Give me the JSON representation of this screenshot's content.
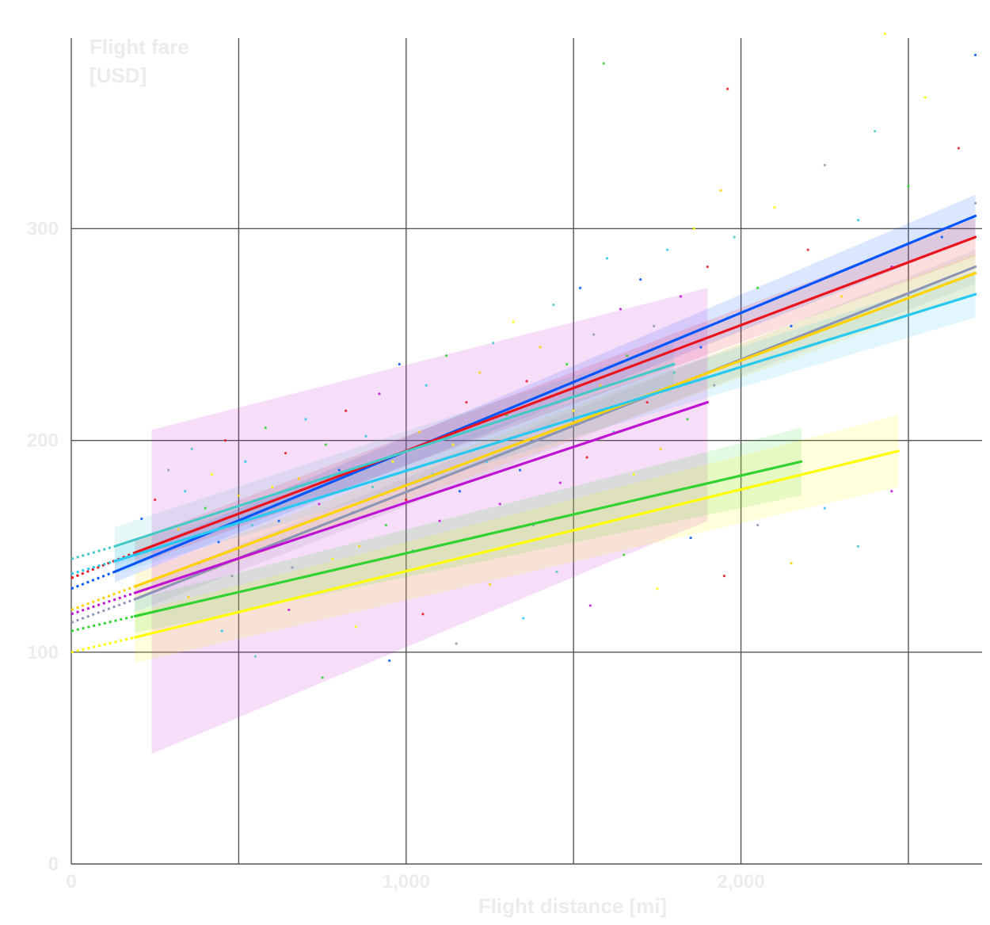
{
  "chart_data": {
    "type": "scatter",
    "title": "",
    "xlabel": "Flight distance [mi]",
    "ylabel_lines": [
      "Flight fare",
      "[USD]"
    ],
    "xlim": [
      0,
      2720
    ],
    "ylim": [
      0,
      390
    ],
    "x_ticks": [
      0,
      500,
      1000,
      1500,
      2000,
      2500
    ],
    "x_tick_labels": [
      "0",
      "",
      "1,000",
      "",
      "2,000",
      ""
    ],
    "y_ticks": [
      0,
      100,
      200,
      300
    ],
    "y_tick_labels": [
      "0",
      "100",
      "200",
      "300"
    ],
    "grid": true,
    "legend": "none",
    "trend_lines": [
      {
        "color": "#0055ff",
        "x": [
          130,
          2700
        ],
        "y": [
          138,
          306
        ],
        "band": [
          [
            130,
            133,
            143
          ],
          [
            2700,
            296,
            316
          ]
        ],
        "extrapolated_to_zero_y": 130
      },
      {
        "color": "#e8141e",
        "x": [
          190,
          2700
        ],
        "y": [
          147,
          296
        ],
        "band": [
          [
            190,
            141,
            153
          ],
          [
            2700,
            287,
            305
          ]
        ],
        "extrapolated_to_zero_y": 135
      },
      {
        "color": "#8c96b4",
        "x": [
          190,
          2700
        ],
        "y": [
          125,
          282
        ],
        "band": [
          [
            190,
            119,
            131
          ],
          [
            2700,
            274,
            290
          ]
        ],
        "extrapolated_to_zero_y": 114
      },
      {
        "color": "#ffd200",
        "x": [
          190,
          2700
        ],
        "y": [
          131,
          279
        ],
        "band": [
          [
            190,
            125,
            137
          ],
          [
            2700,
            270,
            288
          ]
        ],
        "extrapolated_to_zero_y": 120
      },
      {
        "color": "#28c8f0",
        "x": [
          130,
          2700
        ],
        "y": [
          143,
          269
        ],
        "band": [
          [
            130,
            137,
            149
          ],
          [
            2700,
            258,
            280
          ]
        ],
        "extrapolated_to_zero_y": 137
      },
      {
        "color": "#46c8c8",
        "x": [
          130,
          1800
        ],
        "y": [
          150,
          236
        ],
        "band": [
          [
            130,
            141,
            159
          ],
          [
            1800,
            226,
            246
          ]
        ],
        "extrapolated_to_zero_y": 144
      },
      {
        "color": "#be14d2",
        "x": [
          190,
          1900
        ],
        "y": [
          128,
          218
        ],
        "band": [
          [
            240,
            52,
            205
          ],
          [
            1900,
            162,
            272
          ]
        ],
        "extrapolated_to_zero_y": 118
      },
      {
        "color": "#32d232",
        "x": [
          190,
          2180
        ],
        "y": [
          117,
          190
        ],
        "band": [
          [
            190,
            109,
            125
          ],
          [
            2180,
            174,
            206
          ]
        ],
        "extrapolated_to_zero_y": 110
      },
      {
        "color": "#ffff00",
        "x": [
          190,
          2470
        ],
        "y": [
          107,
          195
        ],
        "band": [
          [
            190,
            95,
            119
          ],
          [
            2470,
            178,
            212
          ]
        ],
        "extrapolated_to_zero_y": 100
      }
    ],
    "scatter_summary": "dense cloud of small colored points",
    "scatter_points": [
      [
        210,
        163
      ],
      [
        250,
        172
      ],
      [
        290,
        186
      ],
      [
        320,
        158
      ],
      [
        340,
        176
      ],
      [
        360,
        196
      ],
      [
        380,
        142
      ],
      [
        400,
        168
      ],
      [
        420,
        184
      ],
      [
        440,
        152
      ],
      [
        460,
        200
      ],
      [
        480,
        136
      ],
      [
        500,
        174
      ],
      [
        520,
        190
      ],
      [
        540,
        160
      ],
      [
        560,
        148
      ],
      [
        580,
        206
      ],
      [
        600,
        178
      ],
      [
        620,
        162
      ],
      [
        640,
        194
      ],
      [
        660,
        140
      ],
      [
        680,
        182
      ],
      [
        700,
        210
      ],
      [
        720,
        156
      ],
      [
        740,
        170
      ],
      [
        760,
        198
      ],
      [
        780,
        144
      ],
      [
        800,
        186
      ],
      [
        820,
        214
      ],
      [
        840,
        166
      ],
      [
        860,
        150
      ],
      [
        880,
        202
      ],
      [
        900,
        178
      ],
      [
        920,
        222
      ],
      [
        940,
        160
      ],
      [
        960,
        190
      ],
      [
        980,
        236
      ],
      [
        1000,
        172
      ],
      [
        1020,
        148
      ],
      [
        1040,
        204
      ],
      [
        1060,
        226
      ],
      [
        1080,
        184
      ],
      [
        1100,
        162
      ],
      [
        1120,
        240
      ],
      [
        1140,
        198
      ],
      [
        1160,
        176
      ],
      [
        1180,
        218
      ],
      [
        1200,
        154
      ],
      [
        1220,
        232
      ],
      [
        1240,
        190
      ],
      [
        1260,
        246
      ],
      [
        1280,
        170
      ],
      [
        1300,
        212
      ],
      [
        1320,
        256
      ],
      [
        1340,
        186
      ],
      [
        1360,
        228
      ],
      [
        1380,
        160
      ],
      [
        1400,
        244
      ],
      [
        1420,
        202
      ],
      [
        1440,
        264
      ],
      [
        1460,
        180
      ],
      [
        1480,
        236
      ],
      [
        1500,
        214
      ],
      [
        1520,
        272
      ],
      [
        1540,
        192
      ],
      [
        1560,
        250
      ],
      [
        1580,
        226
      ],
      [
        1600,
        286
      ],
      [
        1620,
        204
      ],
      [
        1640,
        262
      ],
      [
        1660,
        240
      ],
      [
        1680,
        184
      ],
      [
        1700,
        276
      ],
      [
        1720,
        218
      ],
      [
        1740,
        254
      ],
      [
        1760,
        196
      ],
      [
        1780,
        290
      ],
      [
        1800,
        232
      ],
      [
        1820,
        268
      ],
      [
        1840,
        210
      ],
      [
        1860,
        300
      ],
      [
        1880,
        244
      ],
      [
        1900,
        282
      ],
      [
        1920,
        226
      ],
      [
        1940,
        318
      ],
      [
        1960,
        258
      ],
      [
        1980,
        296
      ],
      [
        2000,
        238
      ],
      [
        2050,
        272
      ],
      [
        2100,
        310
      ],
      [
        2150,
        254
      ],
      [
        2200,
        290
      ],
      [
        2250,
        330
      ],
      [
        2300,
        268
      ],
      [
        2350,
        304
      ],
      [
        2400,
        346
      ],
      [
        2450,
        282
      ],
      [
        2500,
        320
      ],
      [
        2550,
        362
      ],
      [
        2600,
        296
      ],
      [
        2650,
        338
      ],
      [
        2700,
        312
      ],
      [
        350,
        126
      ],
      [
        450,
        110
      ],
      [
        550,
        98
      ],
      [
        650,
        120
      ],
      [
        750,
        88
      ],
      [
        850,
        112
      ],
      [
        950,
        96
      ],
      [
        1050,
        118
      ],
      [
        1150,
        104
      ],
      [
        1250,
        132
      ],
      [
        1350,
        116
      ],
      [
        1450,
        138
      ],
      [
        1550,
        122
      ],
      [
        1650,
        146
      ],
      [
        1750,
        130
      ],
      [
        1850,
        154
      ],
      [
        1950,
        136
      ],
      [
        2050,
        160
      ],
      [
        2150,
        142
      ],
      [
        2250,
        168
      ],
      [
        2350,
        150
      ],
      [
        2450,
        176
      ],
      [
        1590,
        378
      ],
      [
        2430,
        392
      ],
      [
        2700,
        382
      ],
      [
        1960,
        366
      ]
    ]
  }
}
